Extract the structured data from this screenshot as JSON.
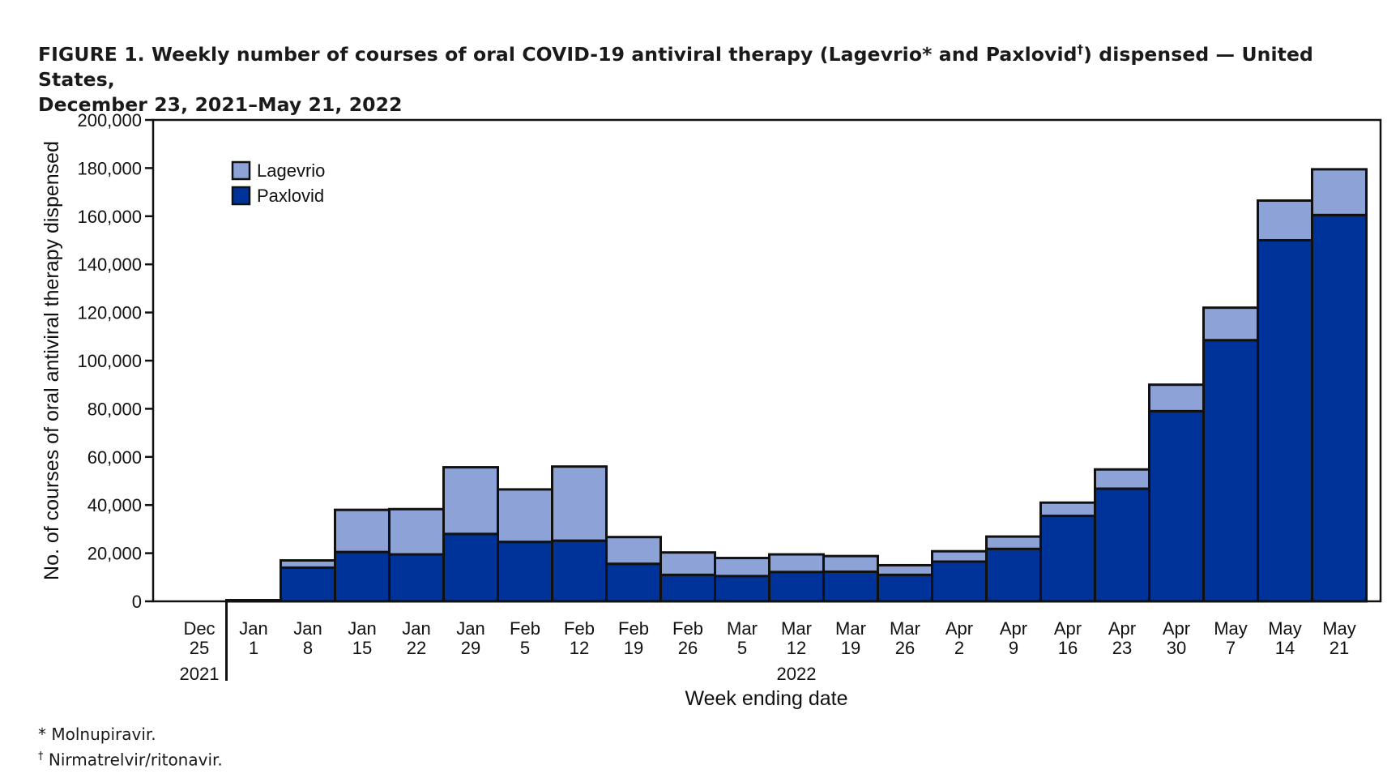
{
  "figure": {
    "label": "FIGURE 1.",
    "title_part1": "Weekly number of courses of oral COVID-19 antiviral therapy (Lagevrio",
    "mark_star": "*",
    "title_part2": " and Paxlovid",
    "mark_dagger": "†",
    "title_part3": ") dispensed — United States,",
    "title_line2": "December 23, 2021–May 21, 2022"
  },
  "footnotes": [
    {
      "marker": "*",
      "text": " Molnupiravir."
    },
    {
      "marker": "†",
      "text": " Nirmatrelvir/ritonavir."
    }
  ],
  "colors": {
    "lagevrio": "#8DA2D6",
    "paxlovid": "#003399",
    "outline": "#111111"
  },
  "chart_data": {
    "type": "bar",
    "stacked": true,
    "title": "",
    "xlabel": "Week ending date",
    "ylabel": "No. of courses of oral antiviral therapy dispensed",
    "ylim": [
      0,
      200000
    ],
    "yticks": [
      0,
      20000,
      40000,
      60000,
      80000,
      100000,
      120000,
      140000,
      160000,
      180000,
      200000
    ],
    "ytick_labels": [
      "0",
      "20,000",
      "40,000",
      "60,000",
      "80,000",
      "100,000",
      "120,000",
      "140,000",
      "160,000",
      "180,000",
      "200,000"
    ],
    "categories": [
      "Dec 25",
      "Jan 1",
      "Jan 8",
      "Jan 15",
      "Jan 22",
      "Jan 29",
      "Feb 5",
      "Feb 12",
      "Feb 19",
      "Feb 26",
      "Mar 5",
      "Mar 12",
      "Mar 19",
      "Mar 26",
      "Apr 2",
      "Apr 9",
      "Apr 16",
      "Apr 23",
      "Apr 30",
      "May 7",
      "May 14",
      "May 21"
    ],
    "category_lines": [
      [
        "Dec",
        "25"
      ],
      [
        "Jan",
        "1"
      ],
      [
        "Jan",
        "8"
      ],
      [
        "Jan",
        "15"
      ],
      [
        "Jan",
        "22"
      ],
      [
        "Jan",
        "29"
      ],
      [
        "Feb",
        "5"
      ],
      [
        "Feb",
        "12"
      ],
      [
        "Feb",
        "19"
      ],
      [
        "Feb",
        "26"
      ],
      [
        "Mar",
        "5"
      ],
      [
        "Mar",
        "12"
      ],
      [
        "Mar",
        "19"
      ],
      [
        "Mar",
        "26"
      ],
      [
        "Apr",
        "2"
      ],
      [
        "Apr",
        "9"
      ],
      [
        "Apr",
        "16"
      ],
      [
        "Apr",
        "23"
      ],
      [
        "Apr",
        "30"
      ],
      [
        "May",
        "7"
      ],
      [
        "May",
        "14"
      ],
      [
        "May",
        "21"
      ]
    ],
    "year_groups": [
      {
        "label": "2021",
        "first": 0,
        "last": 0
      },
      {
        "label": "2022",
        "first": 1,
        "last": 21
      }
    ],
    "series": [
      {
        "name": "Paxlovid",
        "values": [
          0,
          500,
          14000,
          20500,
          19500,
          28000,
          24700,
          25200,
          15600,
          11000,
          10500,
          12200,
          12300,
          11000,
          16500,
          21800,
          35500,
          46800,
          79000,
          108500,
          150000,
          160500
        ]
      },
      {
        "name": "Lagevrio",
        "values": [
          0,
          0,
          3000,
          17500,
          18800,
          27700,
          21800,
          30800,
          11100,
          9300,
          7500,
          7300,
          6500,
          4000,
          4300,
          5100,
          5500,
          8000,
          11000,
          13500,
          16500,
          19000
        ]
      }
    ],
    "legend": {
      "position": "top-left",
      "order": [
        "Lagevrio",
        "Paxlovid"
      ]
    },
    "grid": false
  }
}
